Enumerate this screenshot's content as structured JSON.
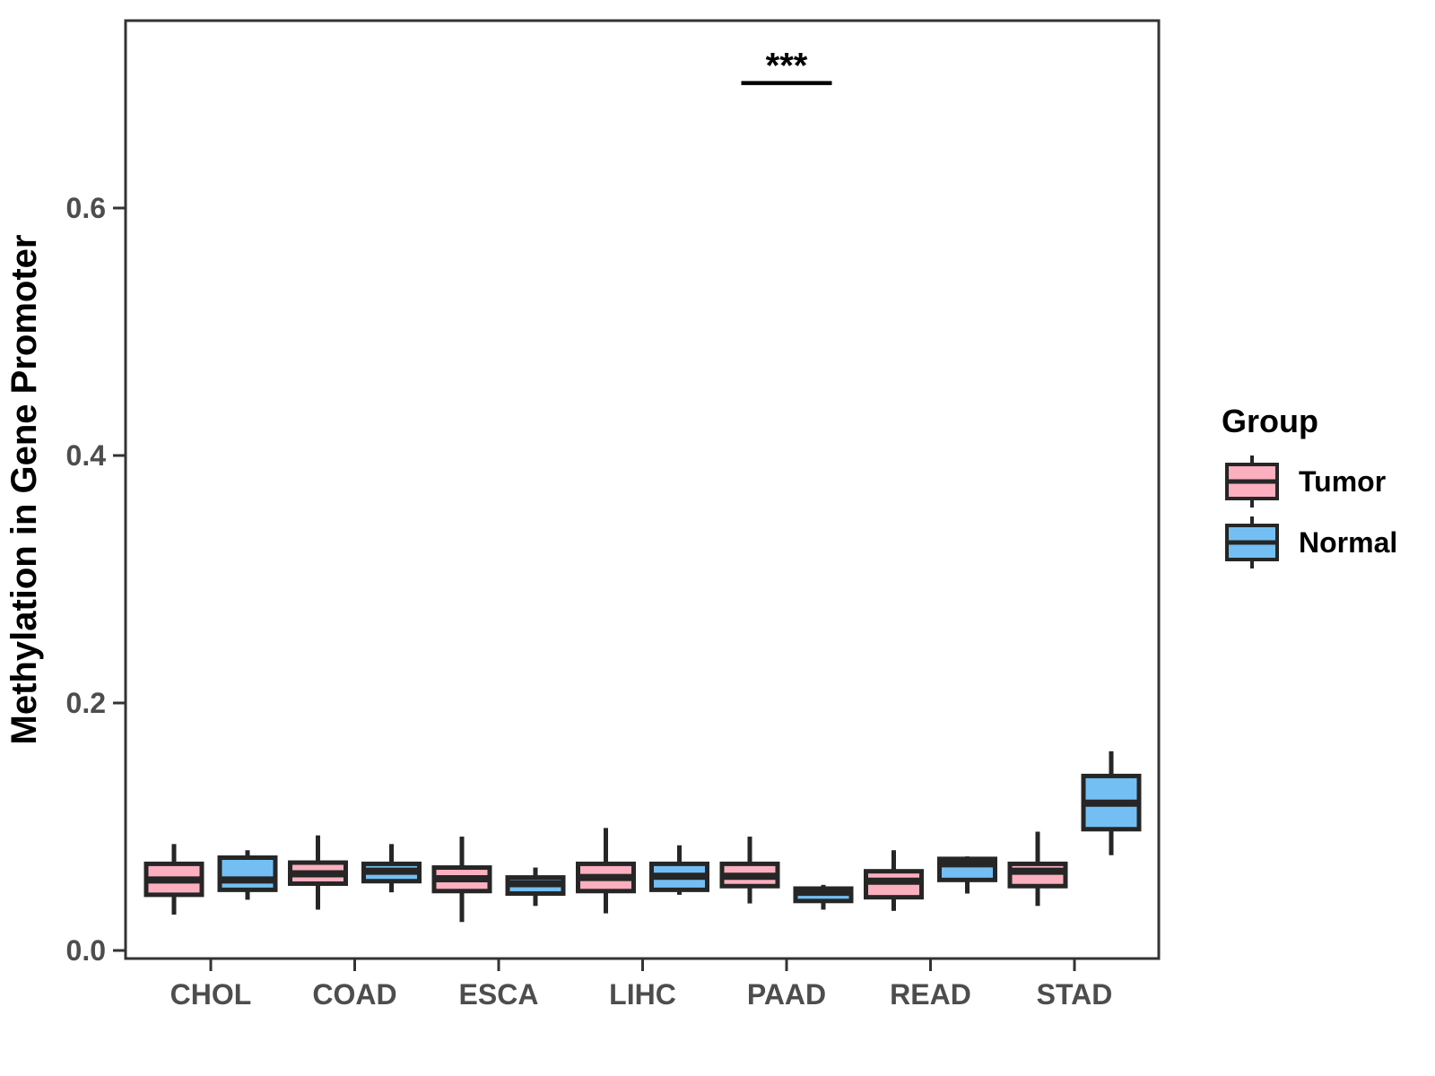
{
  "chart_data": {
    "type": "grouped_boxplot",
    "title": "",
    "xlabel": "",
    "ylabel": "Methylation in Gene Promoter",
    "categories": [
      "CHOL",
      "COAD",
      "ESCA",
      "LIHC",
      "PAAD",
      "READ",
      "STAD"
    ],
    "yticks": [
      0.0,
      0.2,
      0.4,
      0.6
    ],
    "ytick_labels": [
      "0.0",
      "0.2",
      "0.4",
      "0.6"
    ],
    "ylim": [
      -0.006,
      0.752
    ],
    "grid": false,
    "panel_border": true,
    "colors": {
      "tumor_fill": "#FBAFBF",
      "normal_fill": "#73BFF3",
      "box_outline": "#262626",
      "axis_line": "#333333",
      "tick_text": "#4d4d4d"
    },
    "legend": {
      "title": "Group",
      "position": "right",
      "entries": [
        {
          "label": "Tumor",
          "color": "#FBAFBF"
        },
        {
          "label": "Normal",
          "color": "#73BFF3"
        }
      ]
    },
    "series": [
      {
        "name": "Tumor",
        "color": "#FBAFBF",
        "boxes": [
          {
            "category": "CHOL",
            "whisker_low": 0.029,
            "q1": 0.045,
            "median": 0.057,
            "q3": 0.07,
            "whisker_high": 0.086
          },
          {
            "category": "COAD",
            "whisker_low": 0.033,
            "q1": 0.054,
            "median": 0.062,
            "q3": 0.071,
            "whisker_high": 0.093
          },
          {
            "category": "ESCA",
            "whisker_low": 0.023,
            "q1": 0.048,
            "median": 0.058,
            "q3": 0.067,
            "whisker_high": 0.092
          },
          {
            "category": "LIHC",
            "whisker_low": 0.03,
            "q1": 0.048,
            "median": 0.059,
            "q3": 0.07,
            "whisker_high": 0.099
          },
          {
            "category": "PAAD",
            "whisker_low": 0.038,
            "q1": 0.052,
            "median": 0.06,
            "q3": 0.07,
            "whisker_high": 0.092
          },
          {
            "category": "READ",
            "whisker_low": 0.032,
            "q1": 0.043,
            "median": 0.056,
            "q3": 0.064,
            "whisker_high": 0.081
          },
          {
            "category": "STAD",
            "whisker_low": 0.036,
            "q1": 0.052,
            "median": 0.064,
            "q3": 0.07,
            "whisker_high": 0.096
          }
        ]
      },
      {
        "name": "Normal",
        "color": "#73BFF3",
        "boxes": [
          {
            "category": "CHOL",
            "whisker_low": 0.041,
            "q1": 0.049,
            "median": 0.057,
            "q3": 0.075,
            "whisker_high": 0.081
          },
          {
            "category": "COAD",
            "whisker_low": 0.047,
            "q1": 0.056,
            "median": 0.064,
            "q3": 0.07,
            "whisker_high": 0.086
          },
          {
            "category": "ESCA",
            "whisker_low": 0.036,
            "q1": 0.046,
            "median": 0.054,
            "q3": 0.059,
            "whisker_high": 0.067
          },
          {
            "category": "LIHC",
            "whisker_low": 0.045,
            "q1": 0.049,
            "median": 0.06,
            "q3": 0.07,
            "whisker_high": 0.085
          },
          {
            "category": "PAAD",
            "whisker_low": 0.033,
            "q1": 0.04,
            "median": 0.047,
            "q3": 0.05,
            "whisker_high": 0.053
          },
          {
            "category": "READ",
            "whisker_low": 0.046,
            "q1": 0.057,
            "median": 0.07,
            "q3": 0.074,
            "whisker_high": 0.076
          },
          {
            "category": "STAD",
            "whisker_low": 0.077,
            "q1": 0.098,
            "median": 0.119,
            "q3": 0.141,
            "whisker_high": 0.161
          }
        ]
      }
    ],
    "annotations": [
      {
        "type": "significance",
        "label": "***",
        "category": "PAAD",
        "bar_value": 0.701
      }
    ]
  }
}
